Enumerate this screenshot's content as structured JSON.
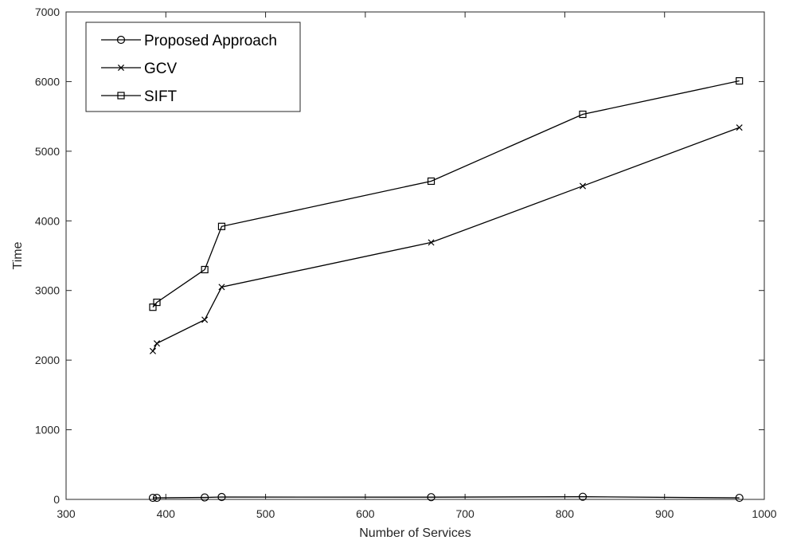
{
  "chart_data": {
    "type": "line",
    "title": "",
    "xlabel": "Number of Services",
    "ylabel": "Time",
    "xlim": [
      300,
      1000
    ],
    "ylim": [
      0,
      7000
    ],
    "xticks": [
      "300",
      "400",
      "500",
      "600",
      "700",
      "800",
      "900",
      "1000"
    ],
    "yticks": [
      "0",
      "1000",
      "2000",
      "3000",
      "4000",
      "5000",
      "6000",
      "7000"
    ],
    "grid": false,
    "legend_position": "top-left",
    "line_color": "#000000",
    "x": [
      387,
      391,
      439,
      456,
      666,
      818,
      975
    ],
    "series": [
      {
        "name": "Proposed Approach",
        "marker": "circle",
        "values": [
          22,
          22,
          28,
          34,
          32,
          38,
          22
        ]
      },
      {
        "name": "GCV",
        "marker": "x",
        "values": [
          2130,
          2240,
          2580,
          3050,
          3690,
          4500,
          5340
        ]
      },
      {
        "name": "SIFT",
        "marker": "square",
        "values": [
          2760,
          2830,
          3300,
          3920,
          4570,
          5530,
          6010
        ]
      }
    ]
  }
}
